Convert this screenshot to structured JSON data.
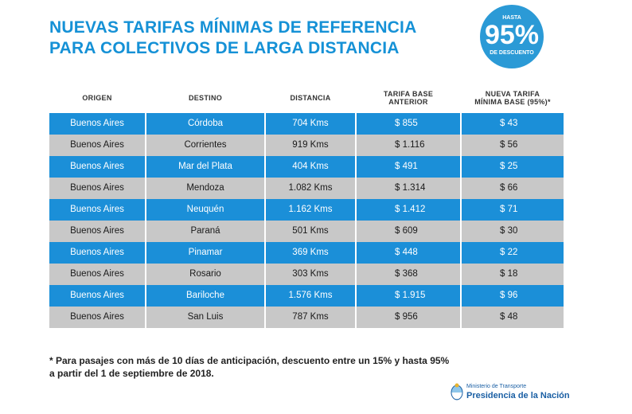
{
  "title": {
    "line1": "NUEVAS TARIFAS MÍNIMAS DE REFERENCIA",
    "line2": "PARA COLECTIVOS DE LARGA DISTANCIA"
  },
  "badge": {
    "top": "HASTA",
    "big": "95%",
    "bottom": "DE DESCUENTO"
  },
  "table": {
    "headers": {
      "origen": "ORIGEN",
      "destino": "DESTINO",
      "distancia": "DISTANCIA",
      "anterior_1": "TARIFA BASE",
      "anterior_2": "ANTERIOR",
      "nueva_1": "NUEVA TARIFA",
      "nueva_2": "MÍNIMA BASE (95%)*"
    },
    "rows": [
      {
        "origen": "Buenos Aires",
        "destino": "Córdoba",
        "distancia": "704 Kms",
        "anterior": "$ 855",
        "nueva": "$ 43"
      },
      {
        "origen": "Buenos Aires",
        "destino": "Corrientes",
        "distancia": "919 Kms",
        "anterior": "$ 1.116",
        "nueva": "$ 56"
      },
      {
        "origen": "Buenos Aires",
        "destino": "Mar del Plata",
        "distancia": "404 Kms",
        "anterior": "$ 491",
        "nueva": "$ 25"
      },
      {
        "origen": "Buenos Aires",
        "destino": "Mendoza",
        "distancia": "1.082 Kms",
        "anterior": "$ 1.314",
        "nueva": "$ 66"
      },
      {
        "origen": "Buenos Aires",
        "destino": "Neuquén",
        "distancia": "1.162 Kms",
        "anterior": "$ 1.412",
        "nueva": "$ 71"
      },
      {
        "origen": "Buenos Aires",
        "destino": "Paraná",
        "distancia": "501 Kms",
        "anterior": "$ 609",
        "nueva": "$ 30"
      },
      {
        "origen": "Buenos Aires",
        "destino": "Pinamar",
        "distancia": "369 Kms",
        "anterior": "$ 448",
        "nueva": "$ 22"
      },
      {
        "origen": "Buenos Aires",
        "destino": "Rosario",
        "distancia": "303 Kms",
        "anterior": "$ 368",
        "nueva": "$ 18"
      },
      {
        "origen": "Buenos Aires",
        "destino": "Bariloche",
        "distancia": "1.576 Kms",
        "anterior": "$ 1.915",
        "nueva": "$ 96"
      },
      {
        "origen": "Buenos Aires",
        "destino": "San Luis",
        "distancia": "787 Kms",
        "anterior": "$ 956",
        "nueva": "$ 48"
      }
    ]
  },
  "footnote": {
    "line1": "* Para pasajes con más de 10 días de anticipación, descuento entre un 15% y hasta 95%",
    "line2": "a partir del 1 de septiembre de 2018."
  },
  "logo": {
    "ministry": "Ministerio de Transporte",
    "presidency": "Presidencia de la Nación"
  },
  "colors": {
    "accent": "#1591d6",
    "row_blue": "#1b8fd8",
    "row_gray": "#c8c8c8",
    "badge": "#2b9ad6"
  }
}
